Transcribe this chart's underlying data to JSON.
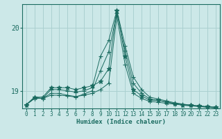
{
  "xlabel": "Humidex (Indice chaleur)",
  "bg_color": "#cce8e8",
  "line_color": "#1a6b60",
  "grid_color": "#aad0d0",
  "xlim": [
    -0.5,
    23.5
  ],
  "ylim": [
    18.72,
    20.38
  ],
  "yticks": [
    19,
    20
  ],
  "xticks": [
    0,
    1,
    2,
    3,
    4,
    5,
    6,
    7,
    8,
    9,
    10,
    11,
    12,
    13,
    14,
    15,
    16,
    17,
    18,
    19,
    20,
    21,
    22,
    23
  ],
  "series": [
    [
      18.78,
      18.9,
      18.9,
      19.05,
      19.05,
      19.05,
      19.02,
      19.05,
      19.08,
      19.15,
      19.35,
      20.28,
      19.55,
      19.02,
      18.92,
      18.85,
      18.85,
      18.82,
      18.8,
      18.78,
      18.77,
      18.76,
      18.75,
      18.74
    ],
    [
      18.78,
      18.9,
      18.88,
      19.02,
      19.02,
      19.0,
      18.98,
      19.0,
      19.05,
      19.55,
      19.8,
      20.28,
      19.72,
      19.22,
      19.02,
      18.9,
      18.87,
      18.84,
      18.81,
      18.79,
      18.77,
      18.76,
      18.74,
      18.74
    ],
    [
      18.78,
      18.88,
      18.88,
      18.96,
      18.96,
      18.93,
      18.91,
      18.93,
      18.96,
      19.02,
      19.12,
      20.18,
      19.42,
      18.96,
      18.88,
      18.83,
      18.82,
      18.8,
      18.79,
      18.77,
      18.76,
      18.75,
      18.74,
      18.73
    ],
    [
      18.78,
      18.88,
      18.88,
      18.93,
      18.93,
      18.92,
      18.9,
      18.95,
      19.0,
      19.32,
      19.62,
      20.24,
      19.64,
      19.12,
      18.96,
      18.87,
      18.85,
      18.82,
      18.8,
      18.78,
      18.77,
      18.75,
      18.74,
      18.73
    ]
  ],
  "markers": [
    "*",
    "+",
    "+",
    "+"
  ],
  "markersizes": [
    5,
    4,
    4,
    4
  ]
}
